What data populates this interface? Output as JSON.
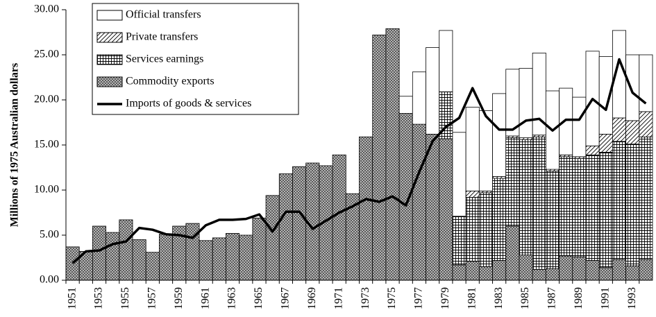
{
  "chart_data": {
    "type": "bar",
    "y_label": "Millions of 1975 Australian dollars",
    "categories": [
      "1951",
      null,
      "1953",
      null,
      "1955",
      null,
      "1957",
      null,
      "1959",
      null,
      "1961",
      null,
      "1963",
      null,
      "1965",
      null,
      "1967",
      null,
      "1969",
      null,
      "1971",
      null,
      "1973",
      null,
      "1975",
      null,
      "1977",
      null,
      "1979",
      null,
      "1981",
      null,
      "1983",
      null,
      "1985",
      null,
      "1987",
      null,
      "1989",
      null,
      "1991",
      null,
      "1993",
      null
    ],
    "ylim": [
      0,
      30
    ],
    "yticks": [
      {
        "value": 0,
        "label": "0.00"
      },
      {
        "value": 5,
        "label": "5.00"
      },
      {
        "value": 10,
        "label": "10.00"
      },
      {
        "value": 15,
        "label": "15.00"
      },
      {
        "value": 20,
        "label": "20.00"
      },
      {
        "value": 25,
        "label": "25.00"
      },
      {
        "value": 30,
        "label": "30.00"
      }
    ],
    "stacked": true,
    "series": [
      {
        "name": "Official transfers",
        "color": "#ffffff",
        "values": [
          null,
          null,
          null,
          null,
          null,
          null,
          null,
          null,
          null,
          null,
          null,
          null,
          null,
          null,
          null,
          null,
          null,
          null,
          null,
          null,
          null,
          null,
          null,
          null,
          null,
          1.9,
          5.8,
          9.6,
          6.8,
          9.3,
          9.3,
          8.9,
          9.2,
          7.4,
          7.7,
          9.1,
          8.7,
          7.4,
          6.6,
          10.5,
          8.6,
          9.7,
          7.3,
          6.3
        ]
      },
      {
        "name": "Private transfers",
        "color": "#ffffff",
        "values": [
          null,
          null,
          null,
          null,
          null,
          null,
          null,
          null,
          null,
          null,
          null,
          null,
          null,
          null,
          null,
          null,
          null,
          null,
          null,
          null,
          null,
          null,
          null,
          null,
          null,
          null,
          null,
          null,
          null,
          null,
          0.7,
          0.2,
          0.2,
          0.2,
          0.2,
          0.2,
          0.2,
          0.2,
          0.2,
          1.0,
          2.0,
          2.6,
          2.6,
          2.8
        ]
      },
      {
        "name": "Services earnings",
        "color": "#ffffff",
        "values": [
          null,
          null,
          null,
          null,
          null,
          null,
          null,
          null,
          null,
          null,
          null,
          null,
          null,
          null,
          null,
          null,
          null,
          null,
          null,
          null,
          null,
          null,
          null,
          null,
          null,
          null,
          null,
          null,
          5.2,
          5.4,
          7.1,
          8.2,
          9.1,
          9.8,
          12.8,
          14.7,
          10.8,
          11.0,
          10.9,
          11.7,
          12.8,
          13.1,
          13.5,
          13.6
        ]
      },
      {
        "name": "Commodity exports",
        "color": "#c8c8c8",
        "values": [
          3.7,
          3.2,
          6.0,
          5.3,
          6.7,
          4.5,
          3.1,
          5.1,
          6.0,
          6.3,
          4.4,
          4.7,
          5.2,
          5.0,
          6.9,
          9.4,
          11.8,
          12.6,
          13.0,
          12.7,
          13.9,
          9.6,
          15.9,
          27.2,
          27.9,
          18.5,
          17.3,
          16.2,
          15.7,
          1.7,
          2.1,
          1.5,
          2.2,
          6.0,
          2.8,
          1.2,
          1.3,
          2.7,
          2.6,
          2.2,
          1.4,
          2.3,
          1.6,
          2.3
        ]
      },
      {
        "name": "Imports of goods & services",
        "type": "line",
        "color": "#000000",
        "values": [
          1.9,
          3.2,
          3.3,
          4.0,
          4.3,
          5.8,
          5.6,
          5.1,
          5.0,
          4.7,
          6.1,
          6.7,
          6.7,
          6.8,
          7.3,
          5.4,
          7.6,
          7.6,
          5.7,
          6.6,
          7.5,
          8.2,
          9.0,
          8.7,
          9.3,
          8.3,
          12.0,
          15.4,
          17.0,
          18.0,
          21.3,
          18.2,
          16.7,
          16.7,
          17.7,
          17.9,
          16.6,
          17.8,
          17.8,
          20.1,
          18.9,
          24.5,
          20.8,
          19.6
        ]
      }
    ]
  }
}
